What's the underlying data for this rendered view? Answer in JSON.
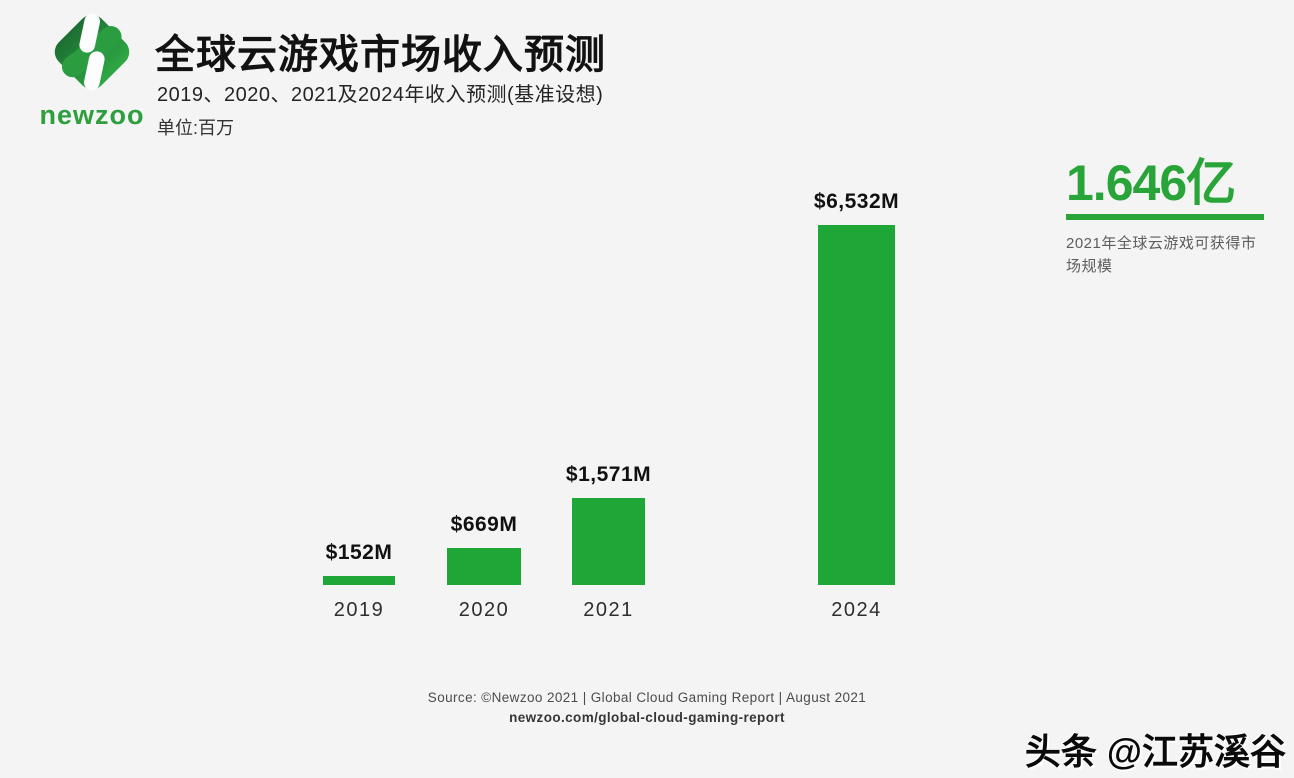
{
  "brand": {
    "name": "newzoo"
  },
  "header": {
    "title": "全球云游戏市场收入预测",
    "subtitle": "2019、2020、2021及2024年收入预测(基准设想)",
    "unit_label": "单位:百万"
  },
  "chart_data": {
    "type": "bar",
    "title": "全球云游戏市场收入预测",
    "categories": [
      "2019",
      "2020",
      "2021",
      "2024"
    ],
    "values": [
      152,
      669,
      1571,
      6532
    ],
    "value_labels": [
      "$152M",
      "$669M",
      "$1,571M",
      "$6,532M"
    ],
    "xlabel": "",
    "ylabel": "",
    "ylim": [
      0,
      6600
    ],
    "grid": false,
    "legend": "none",
    "bar_color": "#1ea637"
  },
  "highlight": {
    "value": "1.646亿",
    "caption": "2021年全球云游戏可获得市场规模",
    "color": "#28a439"
  },
  "footer": {
    "source": "Source: ©Newzoo 2021 | Global Cloud Gaming Report | August 2021",
    "link": "newzoo.com/global-cloud-gaming-report"
  },
  "watermark": "头条 @江苏溪谷",
  "colors": {
    "background": "#f4f4f4",
    "bar_green": "#1ea637",
    "logo_green_dark": "#1b6e31",
    "logo_green_light": "#2fa845",
    "wordmark_green": "#2f9e3f"
  }
}
